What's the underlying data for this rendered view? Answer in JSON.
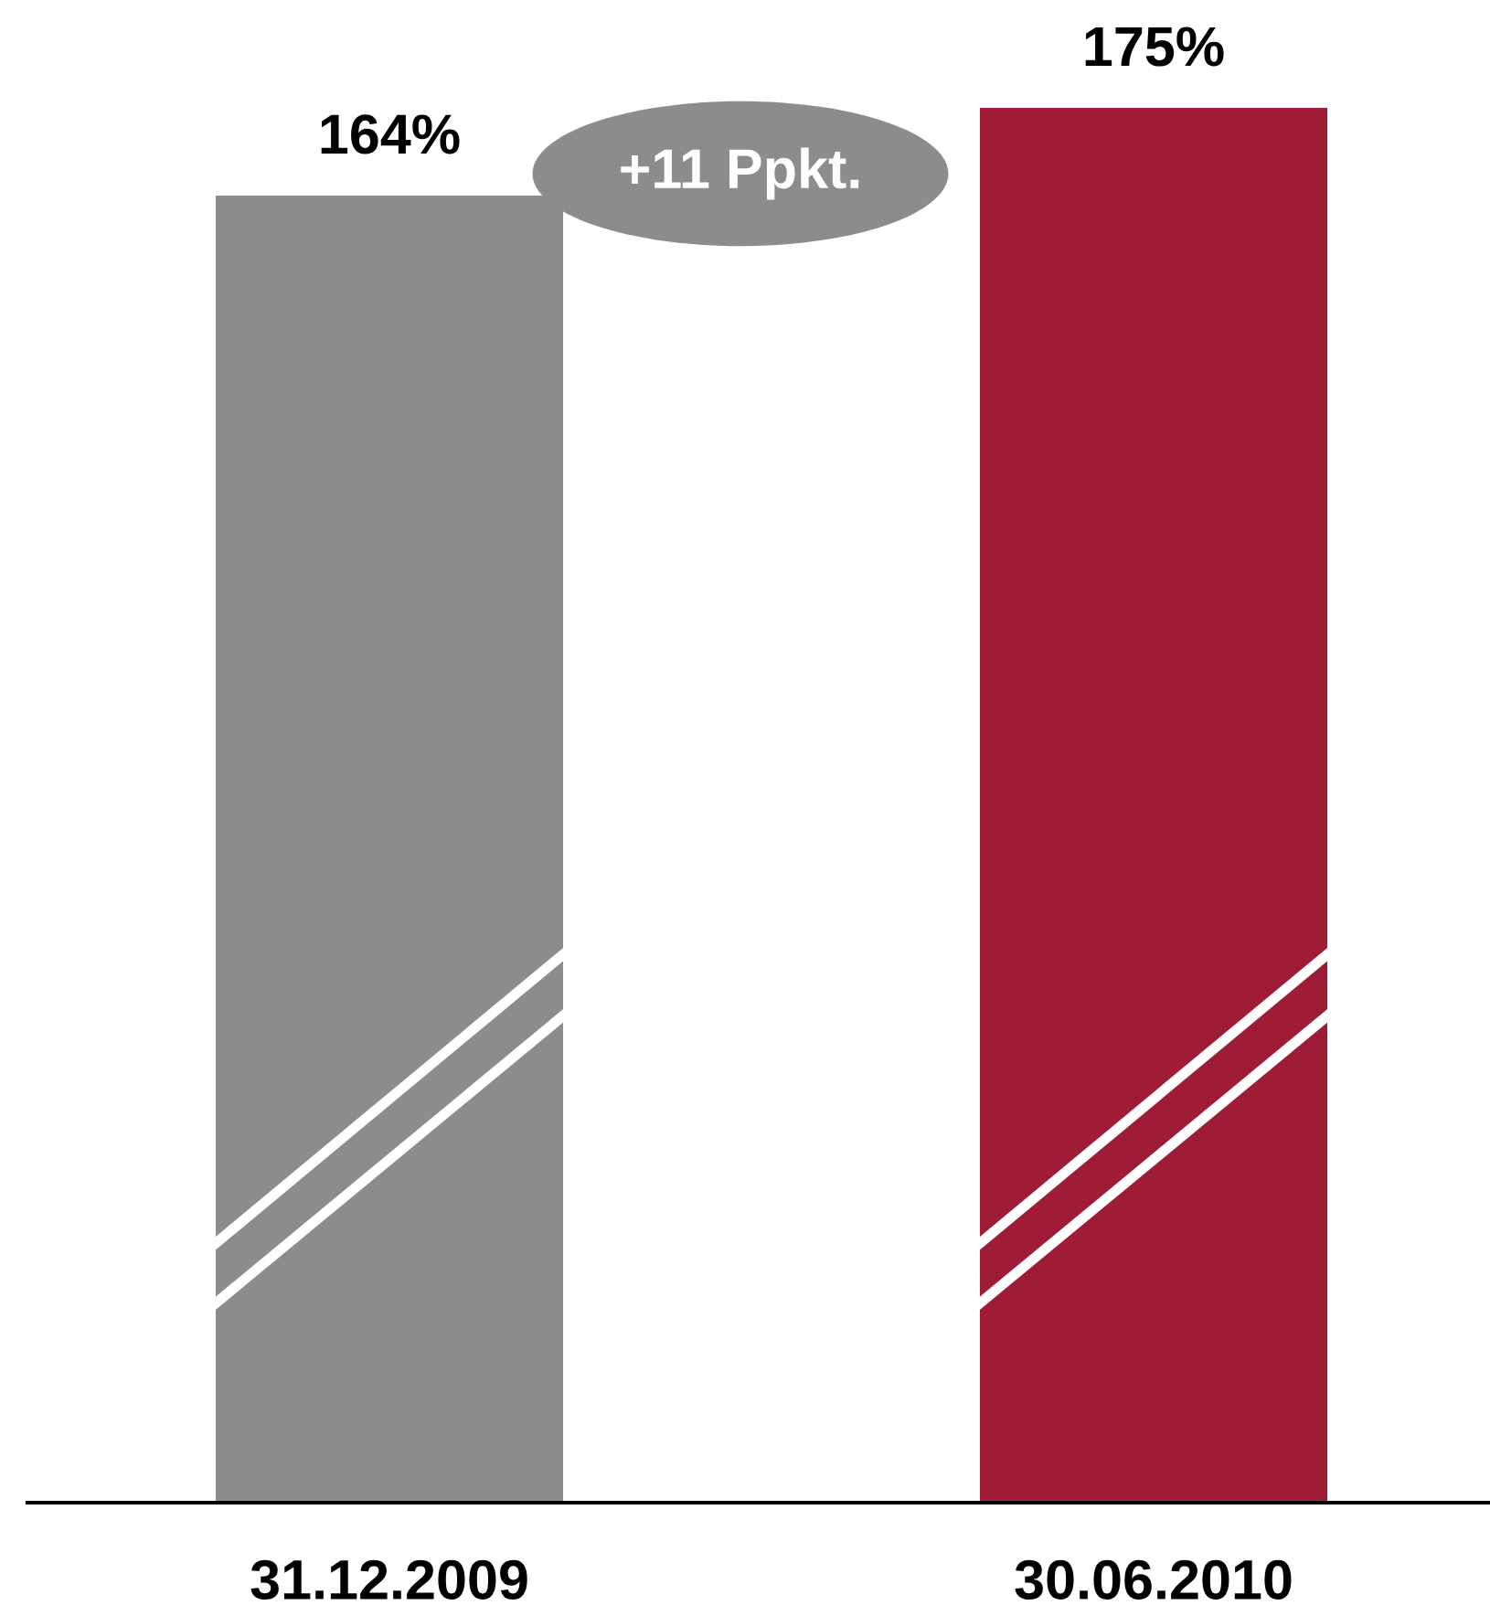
{
  "chart_data": {
    "type": "bar",
    "categories": [
      "31.12.2009",
      "30.06.2010"
    ],
    "values": [
      164,
      175
    ],
    "colors": [
      "#8c8c8c",
      "#9e1c36"
    ],
    "value_labels": [
      "164%",
      "175%"
    ],
    "annotations": [
      "+11 Ppkt."
    ],
    "grid": false,
    "legend": false,
    "tick_labels": "x"
  }
}
